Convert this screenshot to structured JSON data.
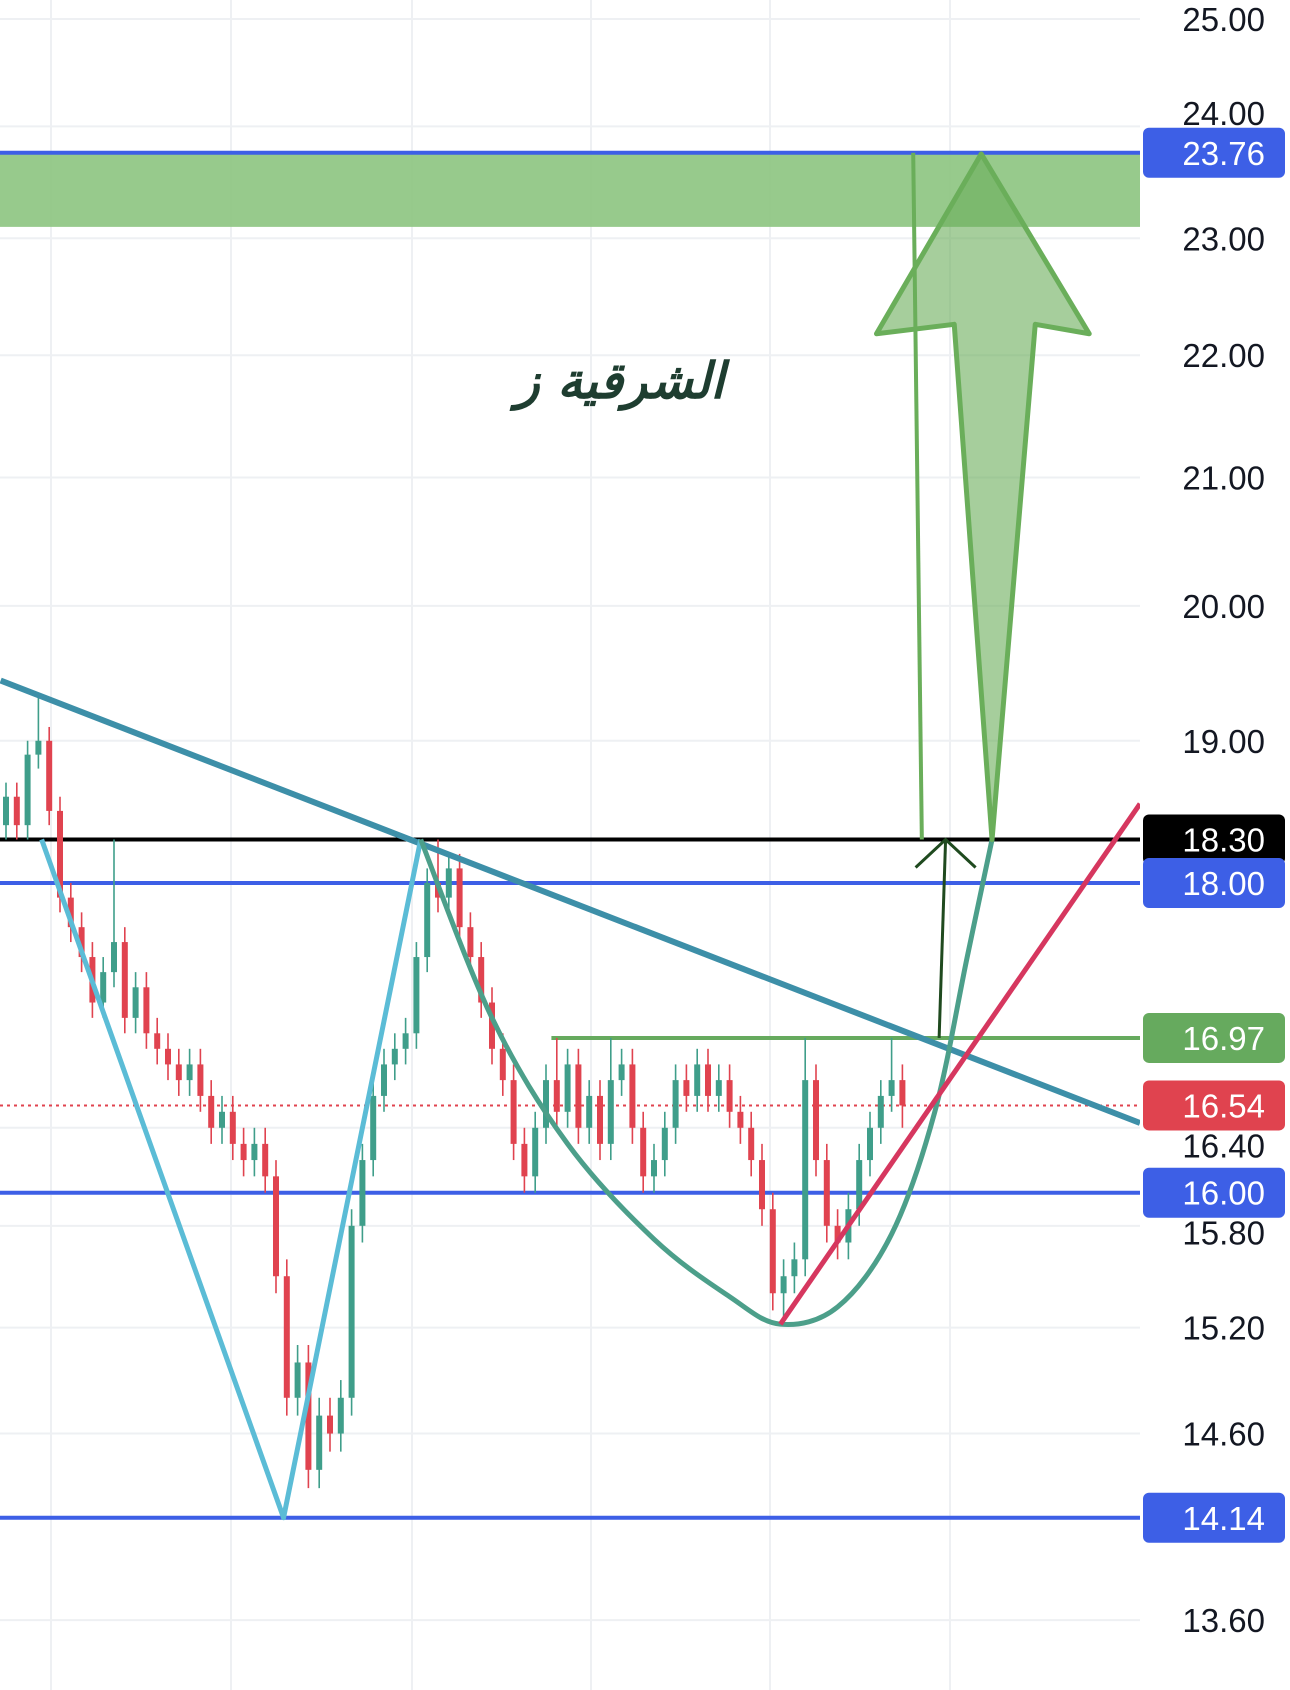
{
  "chart_data": {
    "type": "candlestick",
    "title": "الشرقية ز",
    "y_scale": "log",
    "ylim": [
      13.3,
      25.2
    ],
    "grid": true,
    "y_ticks": [
      "25.00",
      "24.00",
      "23.00",
      "22.00",
      "21.00",
      "20.00",
      "19.00",
      "16.40",
      "15.80",
      "15.20",
      "14.60",
      "13.60"
    ],
    "candles": {
      "open": [
        18.4,
        18.6,
        18.4,
        18.9,
        19.0,
        18.5,
        17.9,
        17.7,
        17.5,
        17.2,
        17.4,
        17.6,
        17.1,
        17.3,
        17.0,
        16.9,
        16.8,
        16.7,
        16.8,
        16.6,
        16.4,
        16.5,
        16.3,
        16.2,
        16.3,
        16.1,
        15.5,
        14.8,
        15.0,
        14.4,
        14.7,
        14.6,
        14.8,
        15.8,
        16.2,
        16.6,
        16.8,
        16.9,
        17.0,
        17.5,
        18.0,
        17.9,
        18.1,
        17.7,
        17.5,
        17.2,
        16.9,
        16.7,
        16.3,
        16.1,
        16.4,
        16.7,
        16.5,
        16.8,
        16.4,
        16.6,
        16.3,
        16.7,
        16.8,
        16.4,
        16.1,
        16.2,
        16.4,
        16.7,
        16.6,
        16.8,
        16.6,
        16.7,
        16.5,
        16.4,
        16.2,
        15.9,
        15.4,
        15.5,
        15.6,
        16.7,
        16.2,
        15.8,
        15.7,
        15.9,
        16.2,
        16.4,
        16.6,
        16.7
      ],
      "high": [
        18.7,
        18.7,
        19.0,
        19.35,
        19.1,
        18.6,
        18.0,
        17.8,
        17.6,
        17.5,
        18.3,
        17.7,
        17.4,
        17.4,
        17.1,
        17.0,
        16.9,
        16.9,
        16.9,
        16.7,
        16.6,
        16.6,
        16.4,
        16.4,
        16.4,
        16.2,
        15.6,
        15.1,
        15.1,
        14.8,
        14.8,
        14.9,
        15.9,
        16.3,
        16.7,
        16.9,
        17.0,
        17.1,
        17.6,
        18.1,
        18.3,
        18.2,
        18.2,
        17.8,
        17.6,
        17.3,
        17.0,
        16.8,
        16.4,
        16.5,
        16.8,
        16.97,
        16.9,
        16.9,
        16.7,
        16.7,
        16.97,
        16.9,
        16.9,
        16.5,
        16.3,
        16.5,
        16.8,
        16.8,
        16.9,
        16.9,
        16.8,
        16.8,
        16.6,
        16.5,
        16.3,
        16.0,
        15.6,
        15.7,
        16.97,
        16.8,
        16.3,
        15.9,
        16.0,
        16.3,
        16.5,
        16.7,
        16.97,
        16.8
      ],
      "low": [
        18.3,
        18.3,
        18.3,
        18.8,
        18.4,
        17.8,
        17.6,
        17.4,
        17.1,
        17.1,
        17.3,
        17.0,
        17.0,
        16.9,
        16.8,
        16.7,
        16.6,
        16.6,
        16.5,
        16.3,
        16.3,
        16.2,
        16.1,
        16.1,
        16.0,
        15.4,
        14.7,
        14.7,
        14.3,
        14.3,
        14.5,
        14.5,
        14.7,
        15.7,
        16.1,
        16.5,
        16.7,
        16.8,
        16.9,
        17.4,
        17.8,
        17.8,
        17.6,
        17.4,
        17.1,
        16.8,
        16.6,
        16.2,
        16.0,
        16.0,
        16.3,
        16.4,
        16.4,
        16.3,
        16.3,
        16.2,
        16.2,
        16.6,
        16.3,
        16.0,
        16.0,
        16.1,
        16.3,
        16.5,
        16.5,
        16.5,
        16.5,
        16.4,
        16.3,
        16.1,
        15.8,
        15.3,
        15.22,
        15.4,
        15.5,
        16.1,
        15.7,
        15.6,
        15.6,
        15.8,
        16.1,
        16.3,
        16.5,
        16.4
      ],
      "close": [
        18.6,
        18.4,
        18.9,
        19.0,
        18.5,
        17.9,
        17.7,
        17.5,
        17.2,
        17.4,
        17.6,
        17.1,
        17.3,
        17.0,
        16.9,
        16.8,
        16.7,
        16.8,
        16.6,
        16.4,
        16.5,
        16.3,
        16.2,
        16.3,
        16.1,
        15.5,
        14.8,
        15.0,
        14.4,
        14.7,
        14.6,
        14.8,
        15.8,
        16.2,
        16.6,
        16.8,
        16.9,
        17.0,
        17.5,
        18.0,
        17.9,
        18.1,
        17.7,
        17.5,
        17.2,
        16.9,
        16.7,
        16.3,
        16.1,
        16.4,
        16.7,
        16.5,
        16.8,
        16.4,
        16.6,
        16.3,
        16.7,
        16.8,
        16.4,
        16.1,
        16.2,
        16.4,
        16.7,
        16.6,
        16.8,
        16.6,
        16.7,
        16.5,
        16.4,
        16.2,
        15.9,
        15.4,
        15.5,
        15.6,
        16.7,
        16.2,
        15.8,
        15.7,
        15.9,
        16.2,
        16.4,
        16.6,
        16.7,
        16.54
      ]
    },
    "price_levels": [
      {
        "label": "23.76",
        "price": 23.76,
        "color": "#3d5fe6",
        "style": "solid"
      },
      {
        "label": "18.30",
        "price": 18.3,
        "color": "#000000",
        "style": "solid"
      },
      {
        "label": "18.00",
        "price": 18.0,
        "color": "#3d5fe6",
        "style": "solid"
      },
      {
        "label": "16.97",
        "price": 16.97,
        "color": "#66aa5e",
        "style": "solid",
        "from_bar": 50.5
      },
      {
        "label": "16.54",
        "price": 16.54,
        "color": "#e0434f",
        "style": "dotted"
      },
      {
        "label": "16.00",
        "price": 16.0,
        "color": "#3d5fe6",
        "style": "solid"
      },
      {
        "label": "14.14",
        "price": 14.14,
        "color": "#3d5fe6",
        "style": "solid"
      }
    ],
    "target_zone": {
      "from": 23.1,
      "to": 23.76,
      "color": "#8cc47f"
    },
    "annotations": {
      "descending_trendline": {
        "color": "#3d8fa8",
        "points": [
          [
            -0.5,
            19.44
          ],
          [
            105,
            16.43
          ]
        ]
      },
      "w_pattern": {
        "color": "#5bbcd6",
        "points": [
          [
            3.3,
            18.3
          ],
          [
            25.7,
            14.14
          ],
          [
            38.4,
            18.3
          ]
        ]
      },
      "cup": {
        "color": "#4c9f8a",
        "points": [
          [
            38.4,
            18.3
          ],
          [
            45,
            17.1
          ],
          [
            52,
            16.3
          ],
          [
            60,
            15.72
          ],
          [
            67,
            15.38
          ],
          [
            71.7,
            15.22
          ],
          [
            77,
            15.32
          ],
          [
            82,
            15.75
          ],
          [
            86,
            16.5
          ],
          [
            89,
            17.5
          ],
          [
            91.3,
            18.3
          ]
        ]
      },
      "rising_trendline": {
        "color": "#d6375f",
        "points": [
          [
            71.7,
            15.22
          ],
          [
            105,
            18.55
          ]
        ]
      },
      "breakout_arrow": {
        "color": "#1f4a1f",
        "points": [
          [
            86.4,
            16.97
          ],
          [
            87.0,
            18.3
          ]
        ]
      },
      "target_line": {
        "color": "#6aae5a",
        "points": [
          [
            84.8,
            18.3
          ],
          [
            84,
            23.76
          ]
        ]
      },
      "target_arrow": {
        "color": "#6aae5a",
        "points": [
          [
            91.3,
            18.3
          ],
          [
            87.8,
            22.26
          ],
          [
            80.6,
            22.18
          ],
          [
            90.3,
            23.75
          ],
          [
            100.3,
            22.18
          ],
          [
            95.3,
            22.26
          ]
        ]
      }
    }
  }
}
